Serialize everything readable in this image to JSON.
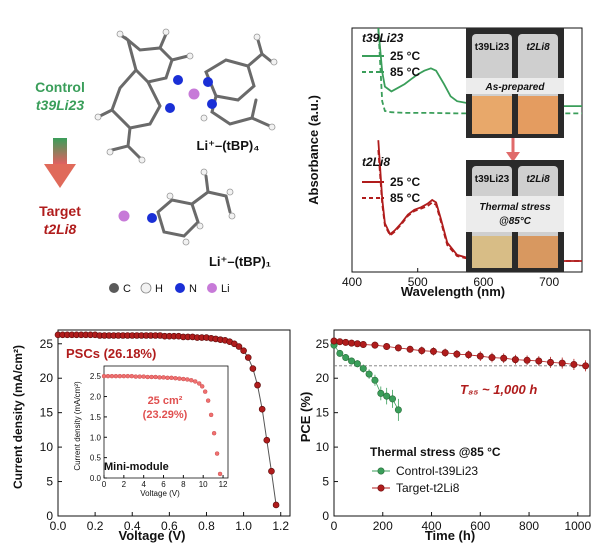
{
  "panel_a": {
    "control_label": "Control",
    "control_name": "t39Li23",
    "target_label": "Target",
    "target_name": "t2Li8",
    "complex4_label": "Li⁺–(tBP)₄",
    "complex1_label": "Li⁺–(tBP)₁",
    "atom_legend": [
      {
        "symbol": "C",
        "color": "#5a5a5a"
      },
      {
        "symbol": "H",
        "color": "#f2f2f2"
      },
      {
        "symbol": "N",
        "color": "#1a2fd6"
      },
      {
        "symbol": "Li",
        "color": "#c77ad8"
      }
    ],
    "control_color": "#3a9e5a",
    "target_color": "#b01c1c"
  },
  "photos": {
    "vial_left": "t39Li23",
    "vial_right": "t2Li8",
    "top_caption": "As-prepared",
    "bottom_caption_line1": "Thermal stress",
    "bottom_caption_line2": "@85°C"
  },
  "chart_data": [
    {
      "id": "absorbance",
      "type": "line",
      "xlabel": "Wavelength (nm)",
      "ylabel": "Absorbance (a.u.)",
      "xlim": [
        400,
        750
      ],
      "xticks": [
        400,
        500,
        600,
        700
      ],
      "groups": [
        {
          "name": "t39Li23",
          "color": "#3a9e5a",
          "series": [
            {
              "name": "25 °C",
              "style": "solid",
              "x": [
                440,
                446,
                450,
                460,
                470,
                480,
                490,
                500,
                510,
                520,
                528,
                540,
                550,
                560,
                580,
                620,
                680,
                750
              ],
              "y": [
                1.0,
                0.82,
                0.76,
                0.74,
                0.755,
                0.77,
                0.79,
                0.81,
                0.825,
                0.835,
                0.825,
                0.77,
                0.72,
                0.7,
                0.69,
                0.685,
                0.68,
                0.68
              ]
            },
            {
              "name": "85 °C",
              "style": "dashed",
              "x": [
                440,
                446,
                450,
                460,
                480,
                520,
                560,
                620,
                680,
                750
              ],
              "y": [
                1.0,
                0.7,
                0.66,
                0.655,
                0.652,
                0.652,
                0.65,
                0.65,
                0.65,
                0.65
              ]
            }
          ]
        },
        {
          "name": "t2Li8",
          "color": "#b01c1c",
          "series": [
            {
              "name": "25 °C",
              "style": "solid",
              "x": [
                440,
                446,
                450,
                458,
                465,
                475,
                485,
                495,
                505,
                515,
                522,
                528,
                535,
                545,
                560,
                580,
                620,
                680,
                750
              ],
              "y": [
                0.54,
                0.3,
                0.2,
                0.155,
                0.17,
                0.2,
                0.235,
                0.255,
                0.265,
                0.28,
                0.295,
                0.285,
                0.22,
                0.12,
                0.07,
                0.055,
                0.05,
                0.045,
                0.045
              ]
            },
            {
              "name": "85 °C",
              "style": "dashed",
              "x": [
                440,
                446,
                450,
                458,
                465,
                475,
                485,
                495,
                505,
                515,
                522,
                528,
                535,
                545,
                560,
                580,
                620,
                680,
                750
              ],
              "y": [
                0.5,
                0.28,
                0.19,
                0.15,
                0.165,
                0.195,
                0.23,
                0.25,
                0.26,
                0.27,
                0.285,
                0.275,
                0.21,
                0.11,
                0.065,
                0.052,
                0.048,
                0.045,
                0.045
              ]
            }
          ]
        }
      ]
    },
    {
      "id": "jv",
      "type": "scatter",
      "label": "PSCs (26.18%)",
      "xlabel": "Voltage (V)",
      "ylabel": "Current density (mA/cm²)",
      "xlim": [
        0,
        1.25
      ],
      "ylim": [
        0,
        27
      ],
      "xticks": [
        0.0,
        0.2,
        0.4,
        0.6,
        0.8,
        1.0,
        1.2
      ],
      "yticks": [
        0,
        5,
        10,
        15,
        20,
        25
      ],
      "color": "#b01c1c",
      "x": [
        0.0,
        0.025,
        0.05,
        0.075,
        0.1,
        0.125,
        0.15,
        0.175,
        0.2,
        0.225,
        0.25,
        0.275,
        0.3,
        0.325,
        0.35,
        0.375,
        0.4,
        0.425,
        0.45,
        0.475,
        0.5,
        0.525,
        0.55,
        0.575,
        0.6,
        0.625,
        0.65,
        0.675,
        0.7,
        0.725,
        0.75,
        0.775,
        0.8,
        0.825,
        0.85,
        0.875,
        0.9,
        0.925,
        0.95,
        0.975,
        1.0,
        1.025,
        1.05,
        1.075,
        1.1,
        1.125,
        1.15,
        1.175
      ],
      "y": [
        26.3,
        26.3,
        26.3,
        26.3,
        26.3,
        26.3,
        26.3,
        26.3,
        26.3,
        26.2,
        26.2,
        26.2,
        26.2,
        26.2,
        26.2,
        26.2,
        26.2,
        26.2,
        26.2,
        26.2,
        26.2,
        26.2,
        26.2,
        26.1,
        26.1,
        26.1,
        26.1,
        26.0,
        26.0,
        26.0,
        25.9,
        25.9,
        25.9,
        25.8,
        25.7,
        25.6,
        25.5,
        25.3,
        25.0,
        24.6,
        24.0,
        23.0,
        21.4,
        19.0,
        15.5,
        11.0,
        6.5,
        1.6
      ],
      "inset": {
        "label_area": "25 cm²",
        "label_eff": "(23.29%)",
        "name": "Mini-module",
        "xlabel": "Voltage (V)",
        "ylabel": "Current density (mA/cm²)",
        "xlim": [
          0,
          12.5
        ],
        "ylim": [
          0,
          2.75
        ],
        "xticks": [
          0,
          2,
          4,
          6,
          8,
          10,
          12
        ],
        "yticks": [
          0.0,
          0.5,
          1.0,
          1.5,
          2.0,
          2.5
        ],
        "color": "#f07070",
        "x": [
          0.0,
          0.4,
          0.8,
          1.2,
          1.6,
          2.0,
          2.4,
          2.8,
          3.2,
          3.6,
          4.0,
          4.4,
          4.8,
          5.2,
          5.6,
          6.0,
          6.4,
          6.8,
          7.2,
          7.6,
          8.0,
          8.4,
          8.8,
          9.2,
          9.6,
          9.9,
          10.2,
          10.5,
          10.8,
          11.1,
          11.4,
          11.7
        ],
        "y": [
          2.5,
          2.5,
          2.5,
          2.5,
          2.5,
          2.5,
          2.5,
          2.5,
          2.49,
          2.49,
          2.49,
          2.48,
          2.48,
          2.48,
          2.47,
          2.47,
          2.46,
          2.46,
          2.45,
          2.44,
          2.43,
          2.42,
          2.4,
          2.37,
          2.32,
          2.25,
          2.12,
          1.9,
          1.55,
          1.1,
          0.6,
          0.1
        ]
      }
    },
    {
      "id": "stability",
      "type": "scatter",
      "title": "Thermal stress @85 °C",
      "annotation": "T₈₅ ~ 1,000 h",
      "xlabel": "Time (h)",
      "ylabel": "PCE (%)",
      "xlim": [
        0,
        1050
      ],
      "ylim": [
        0,
        27
      ],
      "xticks": [
        0,
        200,
        400,
        600,
        800,
        1000
      ],
      "yticks": [
        0,
        5,
        10,
        15,
        20,
        25
      ],
      "reference_line_y": 21.8,
      "series": [
        {
          "name": "Control-t39Li23",
          "color": "#3a9e5a",
          "x": [
            0,
            24,
            48,
            72,
            96,
            120,
            144,
            168,
            192,
            216,
            240,
            264
          ],
          "y": [
            24.8,
            23.6,
            23.0,
            22.5,
            22.1,
            21.4,
            20.6,
            19.7,
            17.8,
            17.4,
            17.0,
            15.4
          ],
          "err": [
            0.3,
            0.4,
            0.4,
            0.5,
            0.5,
            0.6,
            0.7,
            0.8,
            1.0,
            1.2,
            1.3,
            1.6
          ]
        },
        {
          "name": "Target-t2Li8",
          "color": "#b01c1c",
          "x": [
            0,
            24,
            48,
            72,
            96,
            120,
            168,
            216,
            264,
            312,
            360,
            408,
            456,
            504,
            552,
            600,
            648,
            696,
            744,
            792,
            840,
            888,
            936,
            984,
            1032
          ],
          "y": [
            25.4,
            25.3,
            25.2,
            25.1,
            25.0,
            24.9,
            24.8,
            24.6,
            24.4,
            24.2,
            24.0,
            23.9,
            23.7,
            23.5,
            23.4,
            23.2,
            23.0,
            22.9,
            22.7,
            22.6,
            22.5,
            22.3,
            22.2,
            22.0,
            21.8
          ],
          "err": [
            0.3,
            0.3,
            0.3,
            0.4,
            0.4,
            0.4,
            0.5,
            0.5,
            0.5,
            0.5,
            0.6,
            0.6,
            0.6,
            0.6,
            0.6,
            0.7,
            0.7,
            0.7,
            0.7,
            0.7,
            0.7,
            0.8,
            0.8,
            0.8,
            0.8
          ]
        }
      ]
    }
  ]
}
